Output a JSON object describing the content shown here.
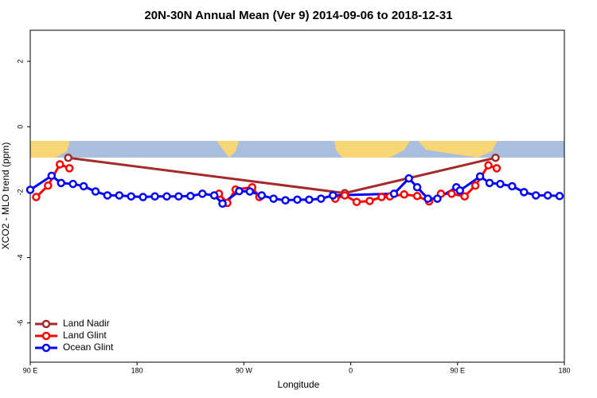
{
  "chart_data": {
    "type": "line",
    "title": "20N-30N Annual Mean (Ver 9)   2014-09-06 to 2018-12-31",
    "xlabel": "Longitude",
    "ylabel": "XCO2 - MLO trend (ppm)",
    "xlim": [
      90,
      540
    ],
    "ylim": [
      -7.2,
      2.95
    ],
    "xticks": [
      {
        "value": 90,
        "label": "90 E"
      },
      {
        "value": 180,
        "label": "180"
      },
      {
        "value": 270,
        "label": "90 W"
      },
      {
        "value": 360,
        "label": "0"
      },
      {
        "value": 450,
        "label": "90 E"
      },
      {
        "value": 540,
        "label": "180"
      }
    ],
    "yticks": [
      -6,
      -4,
      -2,
      0,
      2
    ],
    "legend": "lower left",
    "series": [
      {
        "name": "Land Nadir",
        "color": "#a52a2a",
        "x": [
          122,
          355,
          482
        ],
        "values": [
          -0.95,
          -2.03,
          -0.95
        ]
      },
      {
        "name": "Land Glint",
        "color": "#ff0000",
        "x": [
          95,
          105,
          115,
          123,
          240,
          249,
          256,
          263,
          277,
          283,
          320,
          347,
          355,
          365,
          376,
          386,
          393,
          405,
          416,
          426,
          436,
          445,
          456,
          465,
          476,
          483
        ],
        "values": [
          -2.15,
          -1.8,
          -1.15,
          -1.27,
          null,
          -2.05,
          -2.33,
          -1.92,
          -1.85,
          -2.15,
          null,
          -2.2,
          -2.1,
          -2.3,
          -2.27,
          -2.15,
          -2.13,
          -2.07,
          -2.12,
          -2.28,
          -2.05,
          -2.05,
          -2.13,
          -1.8,
          -1.18,
          -1.27
        ]
      },
      {
        "name": "Ocean Glint",
        "color": "#0000ff",
        "x": [
          90,
          108,
          116,
          126,
          135,
          145,
          155,
          165,
          175,
          185,
          195,
          205,
          215,
          225,
          235,
          245,
          252,
          266,
          275,
          285,
          295,
          305,
          315,
          325,
          335,
          345,
          396.5,
          409,
          416,
          425,
          433,
          449,
          452,
          469,
          477,
          486,
          496,
          506,
          516,
          526,
          536
        ],
        "values": [
          -1.93,
          -1.5,
          -1.72,
          -1.75,
          -1.82,
          -1.98,
          -2.1,
          -2.1,
          -2.13,
          -2.15,
          -2.13,
          -2.13,
          -2.13,
          -2.12,
          -2.05,
          -2.1,
          -2.35,
          -1.97,
          -1.98,
          -2.1,
          -2.2,
          -2.25,
          -2.23,
          -2.23,
          -2.2,
          -2.1,
          -2.05,
          -1.58,
          -1.85,
          -2.2,
          -2.2,
          -1.85,
          -1.95,
          -1.52,
          -1.72,
          -1.75,
          -1.82,
          -2.0,
          -2.1,
          -2.1,
          -2.12
        ]
      }
    ]
  }
}
